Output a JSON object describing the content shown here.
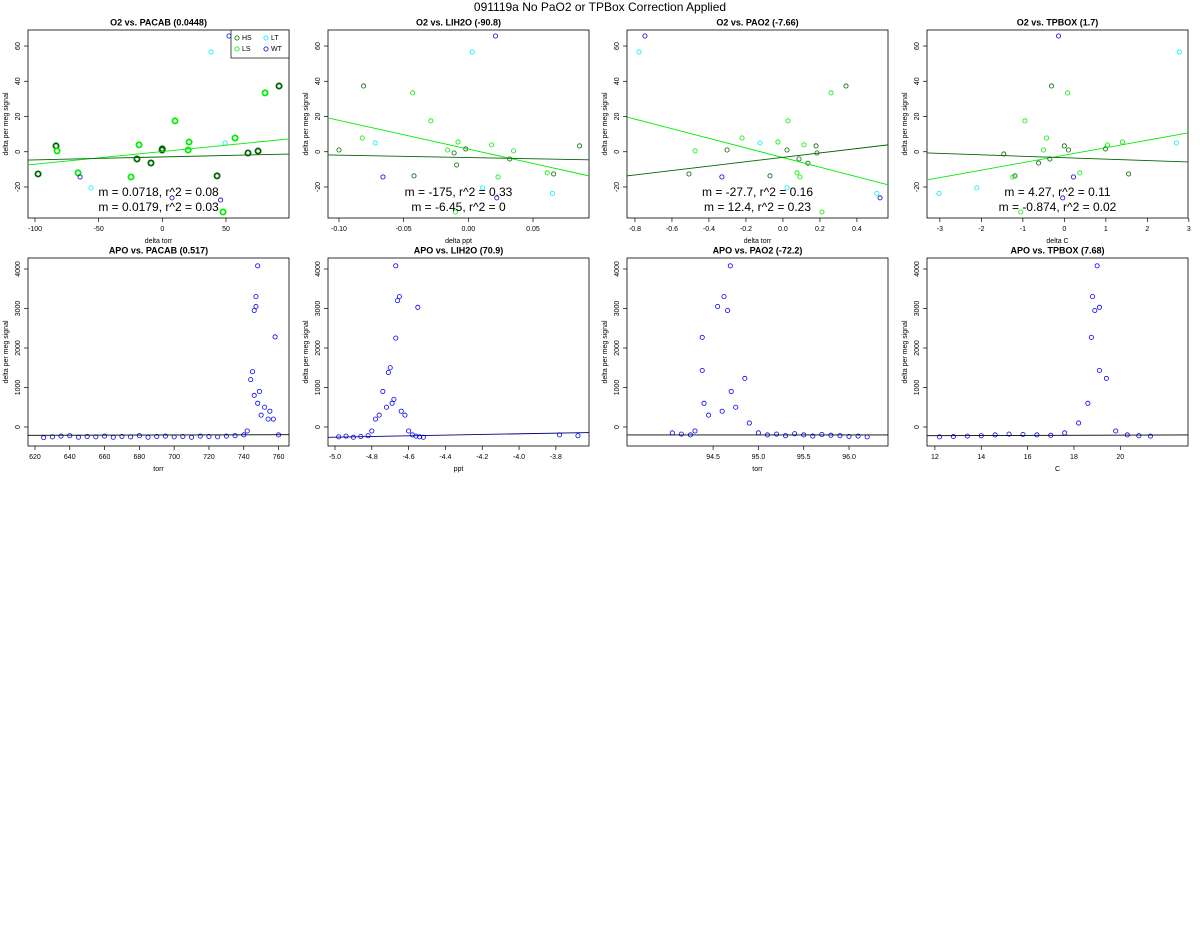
{
  "title": "091119a   No PaO2 or TPBox Correction Applied",
  "chart_data": [
    {
      "type": "scatter",
      "title": "O2 vs. PACAB (0.0448)",
      "xlabel": "delta torr",
      "ylabel": "delta per meg signal",
      "xlim": [
        -105.5,
        99.5
      ],
      "ylim": [
        -37.6,
        69.1
      ],
      "xticks": [
        -100,
        -50,
        0,
        50
      ],
      "yticks": [
        -20,
        0,
        20,
        40,
        60
      ],
      "legend": "topright",
      "series": [
        {
          "name": "HS",
          "color": "#006400",
          "x": [
            -83.5,
            -97.6,
            -19.9,
            -8.9,
            -0.2,
            43,
            67.3,
            75.2,
            91.7,
            0
          ],
          "values": [
            3.3,
            -12.6,
            -4.1,
            -6.4,
            1,
            -13.7,
            -0.7,
            0.4,
            37.3,
            1.6
          ]
        },
        {
          "name": "LS",
          "color": "#00ee00",
          "x": [
            -82.7,
            -66.2,
            -18.3,
            -24.6,
            10,
            21,
            20.3,
            57.1,
            47.7,
            80.7
          ],
          "values": [
            0.5,
            -12,
            3.9,
            -14.3,
            17.5,
            5.5,
            1,
            7.8,
            -34.2,
            33.4
          ]
        },
        {
          "name": "LT",
          "color": "#00eeee",
          "x": [
            38.3,
            49.3,
            -56
          ],
          "values": [
            56.6,
            5,
            -20.5
          ]
        },
        {
          "name": "WT",
          "color": "#0000cd",
          "x": [
            52.4,
            -64.6,
            7.6,
            45.8
          ],
          "values": [
            65.7,
            -14.3,
            -26.2,
            -27.4
          ]
        }
      ],
      "lines": [
        {
          "color": "#00ee00",
          "x": [
            -105.5,
            99.5
          ],
          "values": [
            -7.5,
            7.3
          ]
        },
        {
          "color": "#006400",
          "x": [
            -105.5,
            99.5
          ],
          "values": [
            -4.7,
            -1.3
          ]
        }
      ],
      "annotations": [
        {
          "text": "m = 0.0718, r^2 = 0.08",
          "color": "#00ee00"
        },
        {
          "text": "m = 0.0179, r^2 = 0.03",
          "color": "#006400"
        }
      ]
    },
    {
      "type": "scatter",
      "title": "O2 vs. LIH2O (-90.8)",
      "xlabel": "delta ppt",
      "ylabel": "delta per meg signal",
      "xlim": [
        -0.1085,
        0.0933
      ],
      "ylim": [
        -37.6,
        69.1
      ],
      "xticks": [
        {
          "value": -0.1,
          "label": "-0.10"
        },
        {
          "value": -0.05,
          "label": "-0.05"
        },
        {
          "value": 0,
          "label": "0.00"
        },
        0.05
      ],
      "yticks": [
        -20,
        0,
        20,
        40,
        60
      ],
      "series": [
        {
          "name": "HS",
          "color": "#006400",
          "x": [
            -0.1,
            -0.042,
            -0.009,
            -0.002,
            0.032,
            0.066,
            0.086,
            -0.011,
            -0.081
          ],
          "values": [
            1,
            -13.7,
            -7.5,
            1.6,
            -4.1,
            -12.6,
            3.3,
            -0.7,
            37.3
          ]
        },
        {
          "name": "LS",
          "color": "#00ee00",
          "x": [
            -0.082,
            -0.029,
            -0.008,
            -0.016,
            0.018,
            0.023,
            0.035,
            0.061,
            -0.01,
            -0.043
          ],
          "values": [
            7.8,
            17.5,
            5.5,
            1,
            3.9,
            -14.3,
            0.5,
            -12,
            -34.2,
            33.4
          ]
        },
        {
          "name": "LT",
          "color": "#00eeee",
          "x": [
            -0.072,
            0.003,
            0.011,
            0.065
          ],
          "values": [
            5,
            56.6,
            -20.5,
            -23.7
          ]
        },
        {
          "name": "WT",
          "color": "#0000cd",
          "x": [
            -0.066,
            0.021,
            0.022
          ],
          "values": [
            -14.3,
            65.7,
            -26.2
          ]
        }
      ],
      "lines": [
        {
          "color": "#00ee00",
          "x": [
            -0.1085,
            0.0933
          ],
          "values": [
            19.2,
            -13.7
          ]
        },
        {
          "color": "#006400",
          "x": [
            -0.1085,
            0.0933
          ],
          "values": [
            -1.8,
            -4.6
          ]
        }
      ],
      "annotations": [
        {
          "text": "m = -175, r^2 = 0.33",
          "color": "#00ee00"
        },
        {
          "text": "m = -6.45, r^2 = 0",
          "color": "#006400"
        }
      ]
    },
    {
      "type": "scatter",
      "title": "O2 vs. PAO2 (-7.66)",
      "xlabel": "delta torr",
      "ylabel": "delta per meg signal",
      "xlim": [
        -0.843,
        0.568
      ],
      "ylim": [
        -37.6,
        69.1
      ],
      "xticks": [
        -0.8,
        -0.6,
        -0.4,
        -0.2,
        {
          "value": 0,
          "label": "0.0"
        },
        0.2,
        0.4
      ],
      "yticks": [
        -20,
        0,
        20,
        40,
        60
      ],
      "series": [
        {
          "name": "HS",
          "color": "#006400",
          "x": [
            -0.508,
            -0.302,
            -0.07,
            0.022,
            0.087,
            0.179,
            0.184,
            0.341,
            0.135
          ],
          "values": [
            -12.6,
            1,
            -13.7,
            1,
            -4.1,
            3.3,
            -0.7,
            37.3,
            -6.5
          ]
        },
        {
          "name": "LS",
          "color": "#00ee00",
          "x": [
            -0.475,
            -0.221,
            -0.027,
            0.027,
            0.076,
            0.092,
            0.114,
            0.211,
            0.26
          ],
          "values": [
            0.5,
            7.8,
            5.5,
            17.5,
            -12,
            -14.3,
            3.9,
            -34.2,
            33.4
          ]
        },
        {
          "name": "LT",
          "color": "#00eeee",
          "x": [
            -0.778,
            -0.124,
            0.022,
            0.508
          ],
          "values": [
            56.6,
            5,
            -20.5,
            -23.7
          ]
        },
        {
          "name": "WT",
          "color": "#0000cd",
          "x": [
            -0.746,
            -0.33,
            0.525
          ],
          "values": [
            65.7,
            -14.3,
            -26.2
          ]
        }
      ],
      "lines": [
        {
          "color": "#00ee00",
          "x": [
            -0.843,
            0.568
          ],
          "values": [
            19.7,
            -18.8
          ]
        },
        {
          "color": "#006400",
          "x": [
            -0.843,
            0.568
          ],
          "values": [
            -13.7,
            3.9
          ]
        }
      ],
      "annotations": [
        {
          "text": "m = -27.7, r^2 = 0.16",
          "color": "#00ee00"
        },
        {
          "text": "m = 12.4, r^2 = 0.23",
          "color": "#006400"
        }
      ]
    },
    {
      "type": "scatter",
      "title": "O2 vs. TPBOX (1.7)",
      "xlabel": "delta C",
      "ylabel": "delta per meg signal",
      "xlim": [
        -3.31,
        2.98
      ],
      "ylim": [
        -37.6,
        69.1
      ],
      "xticks": [
        -3,
        -2,
        -1,
        0,
        1,
        2,
        3
      ],
      "yticks": [
        -20,
        0,
        20,
        40,
        60
      ],
      "series": [
        {
          "name": "HS",
          "color": "#006400",
          "x": [
            -1.46,
            -1.19,
            -0.62,
            -0.35,
            0,
            0.1,
            0.99,
            1.55,
            -0.31
          ],
          "values": [
            -1.3,
            -13.7,
            -6.4,
            -4.1,
            3.3,
            1,
            1.6,
            -12.6,
            37.3
          ]
        },
        {
          "name": "LS",
          "color": "#00ee00",
          "x": [
            -0.95,
            -1.05,
            -0.5,
            -0.43,
            0.08,
            0.37,
            1.04,
            1.4,
            -1.24
          ],
          "values": [
            17.5,
            -34.2,
            1,
            7.8,
            33.4,
            -12,
            3.9,
            5.5,
            -14.3
          ]
        },
        {
          "name": "LT",
          "color": "#00eeee",
          "x": [
            -3.02,
            -2.11,
            2.7,
            2.77
          ],
          "values": [
            -23.7,
            -20.5,
            5,
            56.6
          ]
        },
        {
          "name": "WT",
          "color": "#0000cd",
          "x": [
            -0.14,
            0.22,
            -0.04
          ],
          "values": [
            65.7,
            -14.3,
            -26.2
          ]
        }
      ],
      "lines": [
        {
          "color": "#00ee00",
          "x": [
            -3.31,
            2.98
          ],
          "values": [
            -16,
            10.7
          ]
        },
        {
          "color": "#006400",
          "x": [
            -3.31,
            2.98
          ],
          "values": [
            -0.7,
            -5.8
          ]
        }
      ],
      "annotations": [
        {
          "text": "m = 4.27, r^2 = 0.11",
          "color": "#00ee00"
        },
        {
          "text": "m = -0.874, r^2 = 0.02",
          "color": "#006400"
        }
      ]
    },
    {
      "type": "scatter",
      "title": "APO vs. PACAB (0.517)",
      "xlabel": "torr",
      "ylabel": "delta per meg signal",
      "xlim": [
        616,
        766
      ],
      "ylim": [
        -481,
        4278
      ],
      "xticks": [
        620,
        640,
        660,
        680,
        700,
        720,
        740,
        760
      ],
      "yticks": [
        0,
        1000,
        2000,
        3000,
        4000
      ],
      "series": [
        {
          "color": "#0000ff",
          "x": [
            625,
            630,
            635,
            640,
            645,
            650,
            655,
            660,
            665,
            670,
            675,
            680,
            685,
            690,
            695,
            700,
            705,
            710,
            715,
            720,
            725,
            730,
            735,
            740,
            742,
            744,
            745,
            746,
            746,
            747,
            747,
            748,
            748,
            749,
            750,
            752,
            754,
            755,
            757,
            758,
            760
          ],
          "values": [
            -270,
            -250,
            -230,
            -220,
            -260,
            -240,
            -250,
            -230,
            -260,
            -240,
            -250,
            -220,
            -260,
            -240,
            -230,
            -250,
            -240,
            -260,
            -230,
            -240,
            -250,
            -230,
            -220,
            -200,
            -100,
            1200,
            1400,
            2950,
            800,
            3050,
            3300,
            4080,
            600,
            900,
            300,
            500,
            200,
            400,
            200,
            2280,
            -200
          ]
        }
      ],
      "lines": [
        {
          "color": "#000000",
          "x": [
            616,
            766
          ],
          "values": [
            -210,
            -195
          ]
        }
      ]
    },
    {
      "type": "scatter",
      "title": "APO vs. LIH2O (70.9)",
      "xlabel": "ppt",
      "ylabel": "delta per meg signal",
      "xlim": [
        -5.038,
        -3.62
      ],
      "ylim": [
        -481,
        4278
      ],
      "xticks": [
        {
          "value": -5,
          "label": "-5.0"
        },
        -4.8,
        -4.6,
        -4.4,
        -4.2,
        {
          "value": -4,
          "label": "-4.0"
        },
        -3.8
      ],
      "yticks": [
        0,
        1000,
        2000,
        3000,
        4000
      ],
      "series": [
        {
          "color": "#0000ff",
          "x": [
            -4.98,
            -4.94,
            -4.9,
            -4.86,
            -4.82,
            -4.8,
            -4.78,
            -4.76,
            -4.74,
            -4.72,
            -4.71,
            -4.7,
            -4.69,
            -4.68,
            -4.67,
            -4.67,
            -4.66,
            -4.65,
            -4.64,
            -4.62,
            -4.6,
            -4.58,
            -4.56,
            -4.55,
            -4.54,
            -4.52,
            -3.78,
            -3.68
          ],
          "values": [
            -250,
            -230,
            -260,
            -240,
            -220,
            -100,
            200,
            300,
            900,
            500,
            1380,
            1500,
            600,
            700,
            4080,
            2250,
            3200,
            3300,
            400,
            300,
            -100,
            -200,
            -230,
            3030,
            -250,
            -260,
            -200,
            -220
          ]
        }
      ],
      "lines": [
        {
          "color": "#000080",
          "x": [
            -5.038,
            -3.62
          ],
          "values": [
            -260,
            -140
          ]
        }
      ]
    },
    {
      "type": "scatter",
      "title": "APO vs. PAO2 (-72.2)",
      "xlabel": "torr",
      "ylabel": "delta per meg signal",
      "xlim": [
        93.55,
        96.43
      ],
      "ylim": [
        -481,
        4278
      ],
      "xticks": [
        94.5,
        {
          "value": 95,
          "label": "95.0"
        },
        95.5,
        {
          "value": 96,
          "label": "96.0"
        }
      ],
      "yticks": [
        0,
        1000,
        2000,
        3000,
        4000
      ],
      "series": [
        {
          "color": "#0000ff",
          "x": [
            94.05,
            94.15,
            94.25,
            94.3,
            94.38,
            94.38,
            94.4,
            94.45,
            94.55,
            94.6,
            94.62,
            94.66,
            94.69,
            94.7,
            94.75,
            94.85,
            94.9,
            95.0,
            95.1,
            95.2,
            95.3,
            95.4,
            95.5,
            95.6,
            95.7,
            95.8,
            95.9,
            96.0,
            96.1,
            96.2
          ],
          "values": [
            -150,
            -180,
            -200,
            -100,
            2270,
            1430,
            600,
            300,
            3050,
            400,
            3300,
            2950,
            4080,
            900,
            500,
            1230,
            100,
            -150,
            -200,
            -180,
            -220,
            -170,
            -200,
            -230,
            -190,
            -210,
            -220,
            -240,
            -230,
            -250
          ]
        }
      ],
      "lines": [
        {
          "color": "#000000",
          "x": [
            93.55,
            96.43
          ],
          "values": [
            -200,
            -200
          ]
        }
      ]
    },
    {
      "type": "scatter",
      "title": "APO vs. TPBOX (7.68)",
      "xlabel": "C",
      "ylabel": "delta per meg signal",
      "xlim": [
        11.66,
        22.92
      ],
      "ylim": [
        -481,
        4278
      ],
      "xticks": [
        12,
        14,
        16,
        18,
        20
      ],
      "yticks": [
        0,
        1000,
        2000,
        3000,
        4000
      ],
      "series": [
        {
          "color": "#0000ff",
          "x": [
            12.2,
            12.8,
            13.4,
            14.0,
            14.6,
            15.2,
            15.8,
            16.4,
            17.0,
            17.6,
            18.2,
            18.6,
            18.75,
            18.8,
            18.9,
            19.0,
            19.1,
            19.1,
            19.4,
            19.8,
            20.3,
            20.8,
            21.3
          ],
          "values": [
            -250,
            -240,
            -230,
            -220,
            -200,
            -180,
            -190,
            -200,
            -210,
            -150,
            100,
            600,
            2270,
            3300,
            2950,
            4080,
            3030,
            1430,
            1230,
            -100,
            -200,
            -220,
            -230
          ]
        }
      ],
      "lines": [
        {
          "color": "#000000",
          "x": [
            11.66,
            22.92
          ],
          "values": [
            -220,
            -200
          ]
        }
      ]
    }
  ]
}
